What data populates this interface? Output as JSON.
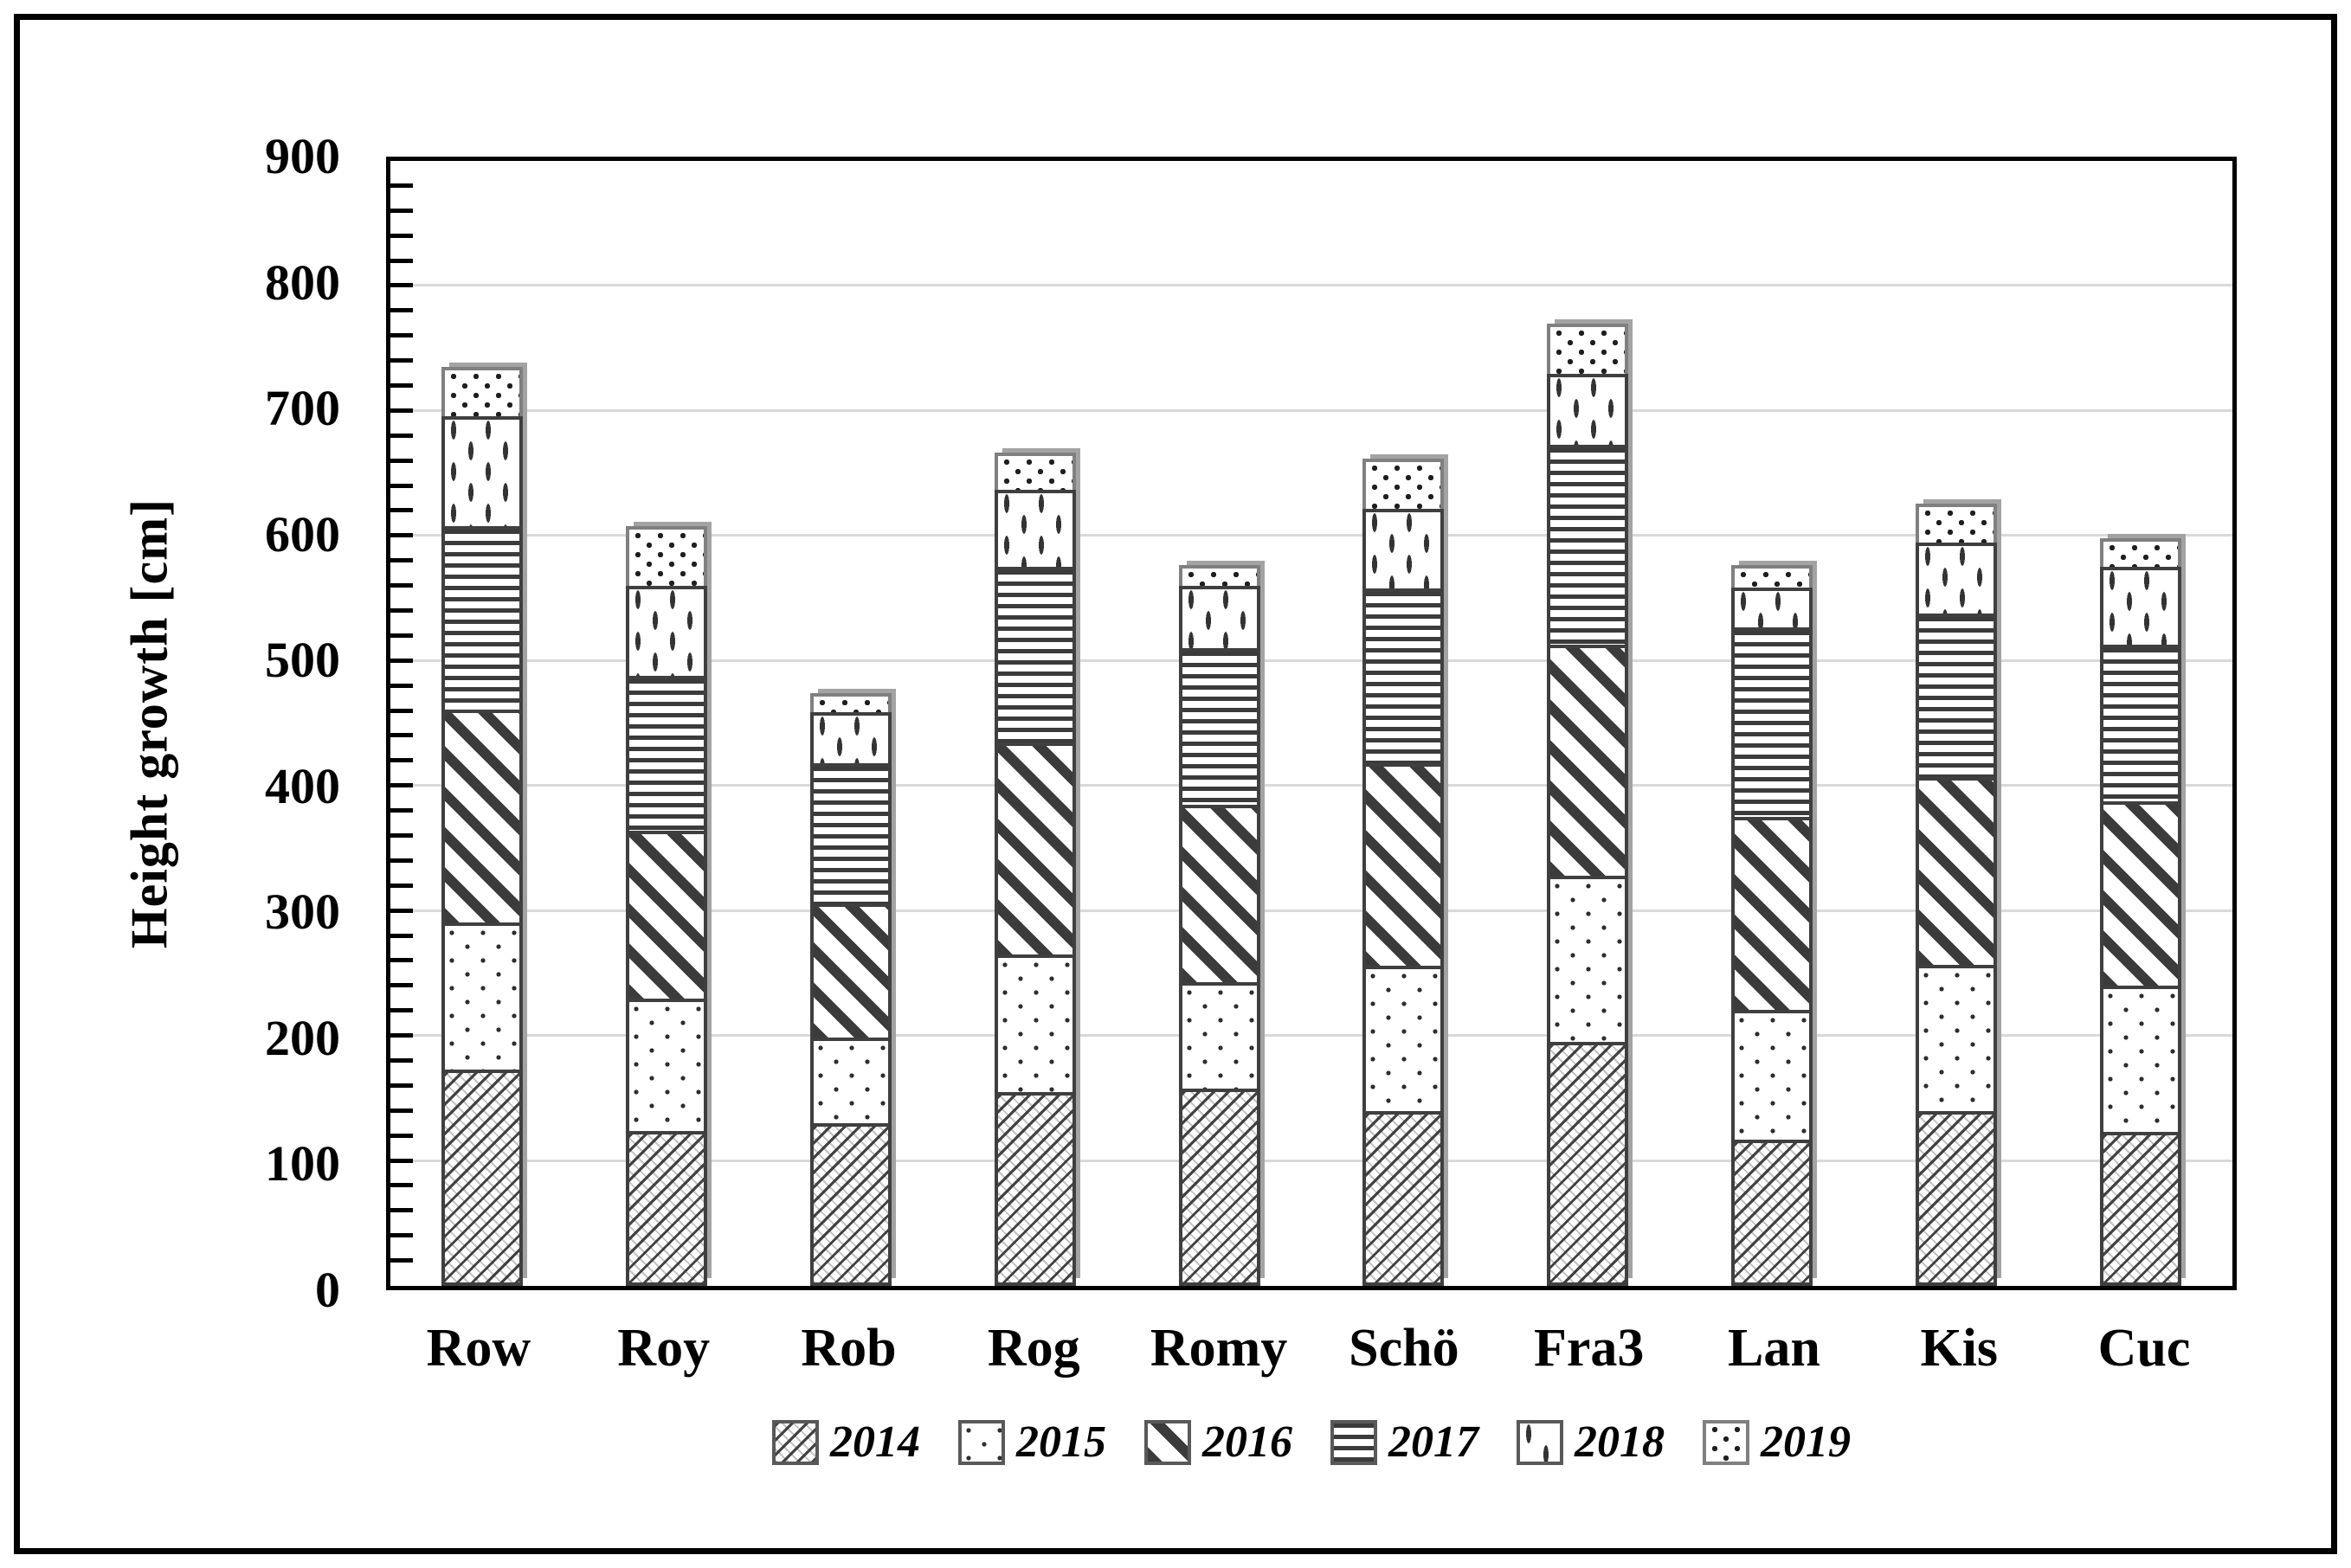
{
  "figure": {
    "background_color": "#ffffff",
    "border_color": "#000000",
    "gridline_color": "#d9d9d9",
    "bar_border_color": "#3f3f3f",
    "top_segment_border_color": "#808080",
    "shadow_color": "#a3a3a3"
  },
  "chart_data": {
    "type": "bar",
    "stacked": true,
    "title": "",
    "xlabel": "",
    "ylabel": "Height growth [cm]",
    "ylim": [
      0,
      900
    ],
    "y_major_step": 100,
    "y_minor_step": 20,
    "y_tick_labels": [
      "0",
      "100",
      "200",
      "300",
      "400",
      "500",
      "600",
      "700",
      "800",
      "900"
    ],
    "grid": "horizontal",
    "legend_position": "bottom",
    "categories": [
      "Row",
      "Roy",
      "Rob",
      "Rog",
      "Romy",
      "Schö",
      "Fra3",
      "Lan",
      "Kis",
      "Cuc"
    ],
    "series": [
      {
        "name": "2014",
        "pattern": "fine-diagonal-hatch",
        "values": [
          173,
          124,
          130,
          155,
          158,
          140,
          195,
          117,
          140,
          123
        ]
      },
      {
        "name": "2015",
        "pattern": "sparse-dots",
        "values": [
          118,
          106,
          69,
          110,
          85,
          116,
          133,
          104,
          117,
          117
        ]
      },
      {
        "name": "2016",
        "pattern": "bold-diagonal-stripes",
        "values": [
          170,
          134,
          107,
          170,
          142,
          162,
          185,
          154,
          150,
          148
        ]
      },
      {
        "name": "2017",
        "pattern": "horizontal-lines",
        "values": [
          147,
          124,
          112,
          140,
          125,
          140,
          160,
          152,
          131,
          125
        ]
      },
      {
        "name": "2018",
        "pattern": "vertical-dashes",
        "values": [
          88,
          72,
          41,
          62,
          50,
          64,
          57,
          32,
          57,
          62
        ]
      },
      {
        "name": "2019",
        "pattern": "dense-dots",
        "values": [
          39,
          48,
          15,
          30,
          17,
          40,
          40,
          18,
          31,
          23
        ]
      }
    ],
    "totals": [
      735,
      608,
      474,
      667,
      577,
      662,
      770,
      577,
      626,
      598
    ]
  }
}
